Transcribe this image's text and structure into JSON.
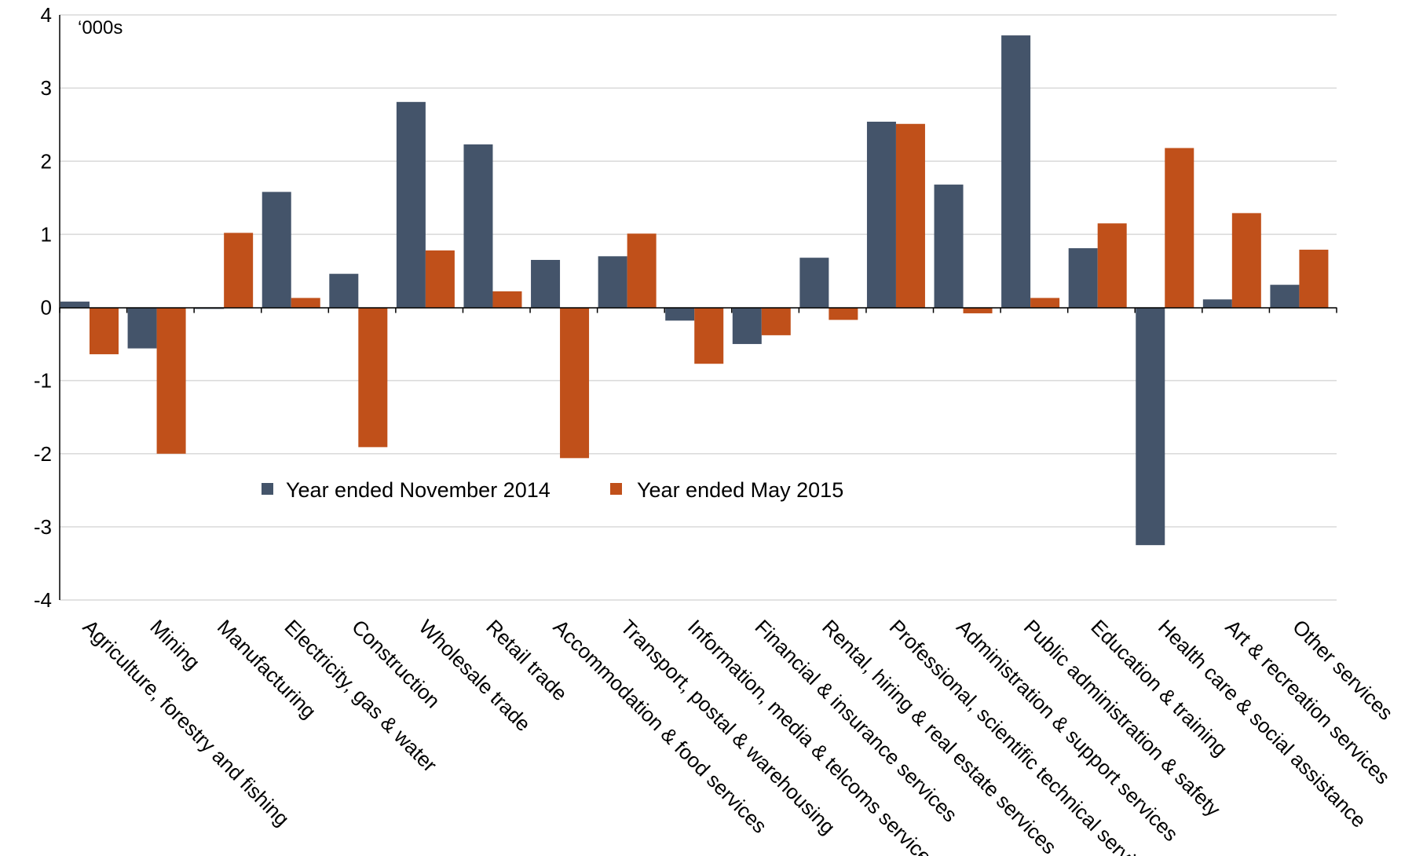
{
  "chart_data": {
    "type": "bar",
    "unit_label": "‘000s",
    "ylim": [
      -4,
      4
    ],
    "yticks": [
      "4",
      "3",
      "2",
      "1",
      "0",
      "-1",
      "-2",
      "-3",
      "-4"
    ],
    "ytick_values": [
      4,
      3,
      2,
      1,
      0,
      -1,
      -2,
      -3,
      -4
    ],
    "grid": true,
    "legend_position": "center",
    "categories": [
      "Agriculture, forestry and fishing",
      "Mining",
      "Manufacturing",
      "Electricity, gas & water",
      "Construction",
      "Wholesale trade",
      "Retail trade",
      "Accommodation & food services",
      "Transport, postal & warehousing",
      "Information, media & telcoms services",
      "Financial & insurance services",
      "Rental, hiring & real estate services",
      "Professional, scientific technical services",
      "Administration & support services",
      "Public administration & safety",
      "Education & training",
      "Health care & social assistance",
      "Art & recreation services",
      "Other services"
    ],
    "series": [
      {
        "name": "Year ended November 2014",
        "color": "#44546a",
        "values": [
          0.08,
          -0.56,
          -0.02,
          1.58,
          0.46,
          2.81,
          2.23,
          0.65,
          0.7,
          -0.18,
          -0.5,
          0.68,
          2.54,
          1.68,
          3.72,
          0.81,
          -3.25,
          0.11,
          0.31
        ]
      },
      {
        "name": "Year ended May 2015",
        "color": "#c0501a",
        "values": [
          -0.64,
          -2.0,
          1.02,
          0.13,
          -1.91,
          0.78,
          0.22,
          -2.06,
          1.01,
          -0.77,
          -0.38,
          -0.17,
          2.51,
          -0.08,
          0.13,
          1.15,
          2.18,
          1.29,
          0.79
        ]
      }
    ]
  }
}
